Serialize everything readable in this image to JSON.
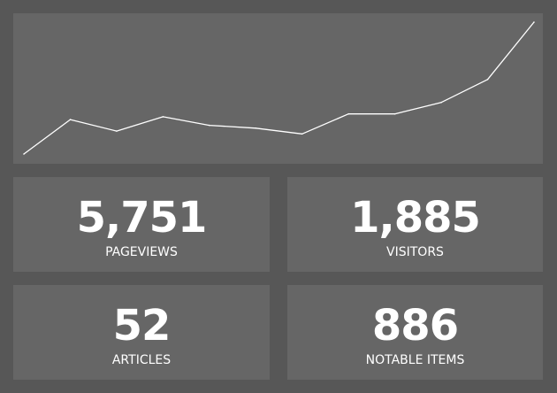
{
  "chart_data": {
    "type": "line",
    "series": [
      {
        "values": [
          0,
          6,
          4,
          6.5,
          5,
          4.5,
          3.5,
          7,
          7,
          9,
          13,
          23
        ]
      }
    ],
    "ylim": [
      0,
      23
    ],
    "grid": false,
    "line_color": "#ffffff"
  },
  "stats": [
    {
      "value": "5,751",
      "label": "PAGEVIEWS"
    },
    {
      "value": "1,885",
      "label": "VISITORS"
    },
    {
      "value": "52",
      "label": "ARTICLES"
    },
    {
      "value": "886",
      "label": "NOTABLE ITEMS"
    }
  ],
  "colors": {
    "background": "#575757",
    "panel": "#666666",
    "text": "#ffffff"
  }
}
